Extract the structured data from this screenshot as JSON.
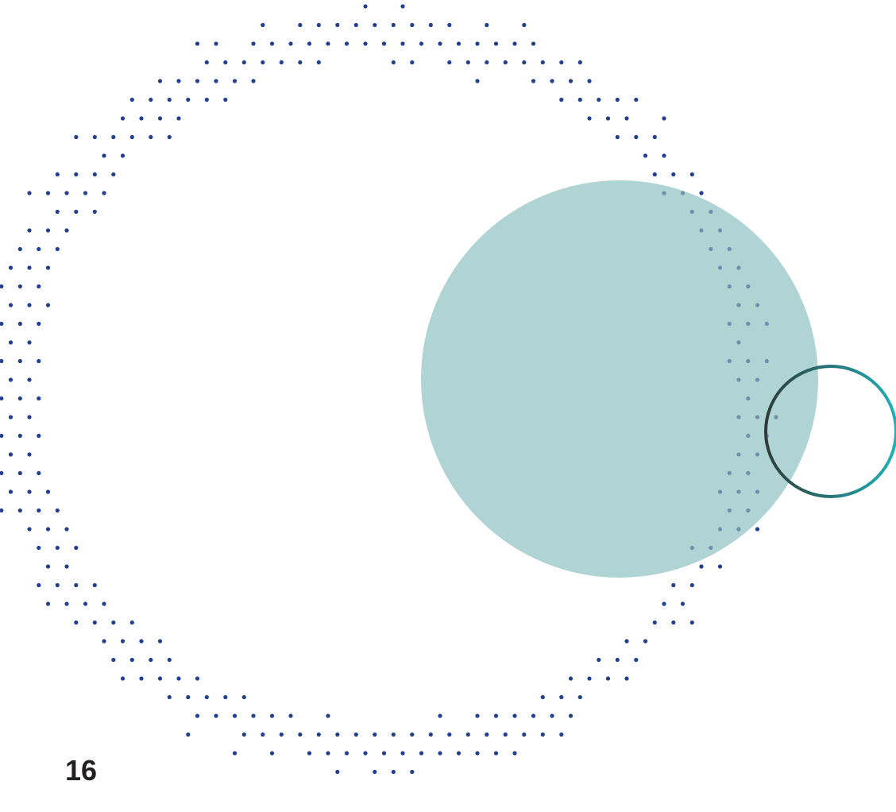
{
  "page": {
    "page_number": "16"
  },
  "colors": {
    "background": "#ffffff",
    "dots": "#233f8f",
    "dots_on_circle": "#6f8fb0",
    "teal_disc": "#b0d4d3",
    "ring_start": "#2f3b3a",
    "ring_end": "#1fb0b8",
    "page_number": "#231f20"
  },
  "icons": {
    "dotted_ring": "dotted-ring-graphic",
    "disc": "teal-disc-graphic",
    "outline_ring": "gradient-ring-outline-graphic"
  }
}
